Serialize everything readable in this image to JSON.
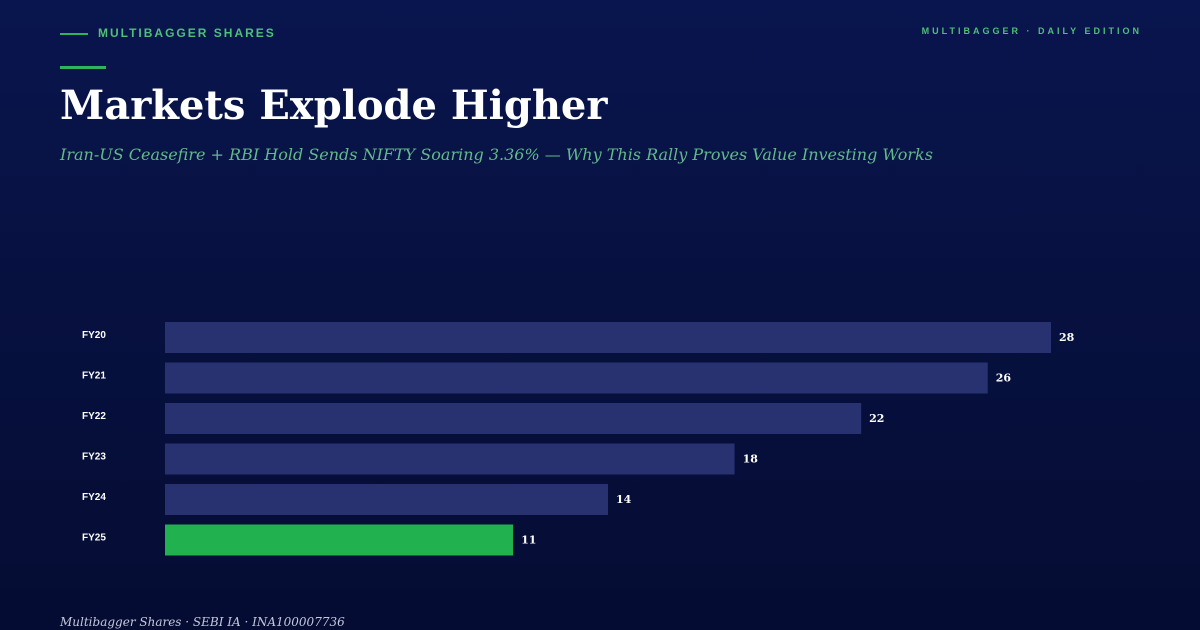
{
  "header": {
    "brand": "MULTIBAGGER SHARES",
    "edition": "MULTIBAGGER · DAILY EDITION"
  },
  "headline": {
    "title": "Markets Explode Higher",
    "subtitle": "Iran-US Ceasefire + RBI Hold Sends NIFTY Soaring 3.36% — Why This Rally Proves Value Investing Works"
  },
  "footer": {
    "credit": "Multibagger Shares · SEBI IA · INA100007736"
  },
  "colors": {
    "background": "#071140",
    "accent": "#2fb360",
    "bar": "#283270",
    "bar_highlight": "#22b14f",
    "text": "#ffffff",
    "subtitle": "#63b98b"
  },
  "chart_data": {
    "type": "bar",
    "orientation": "horizontal",
    "categories": [
      "FY20",
      "FY21",
      "FY22",
      "FY23",
      "FY24",
      "FY25"
    ],
    "values": [
      28,
      26,
      22,
      18,
      14,
      11
    ],
    "value_labels": [
      "28",
      "26",
      "22",
      "18",
      "14",
      "11"
    ],
    "highlight_index": 5,
    "xlim": [
      0,
      28
    ],
    "grid": false,
    "legend": "none"
  }
}
